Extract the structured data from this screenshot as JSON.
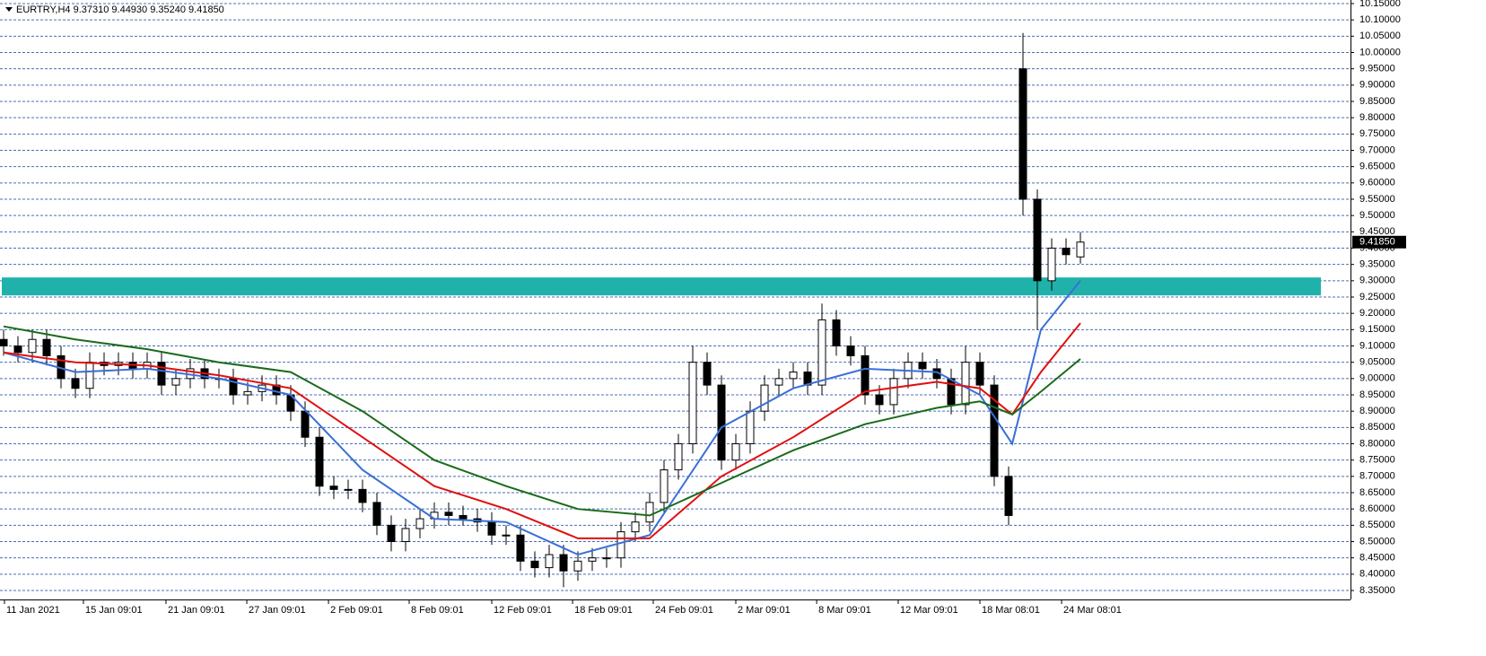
{
  "chart_data": {
    "type": "candlestick",
    "title": "EURTRY,H4  9.37310 9.44930 9.35240 9.41850",
    "x": [
      0,
      1,
      2,
      3,
      4,
      5,
      6,
      7,
      8,
      9,
      10,
      11,
      12,
      13,
      14,
      15,
      16,
      17,
      18,
      19,
      20,
      21,
      22,
      23,
      24,
      25,
      26,
      27,
      28,
      29,
      30,
      31,
      32,
      33,
      34,
      35,
      36,
      37,
      38,
      39,
      40,
      41,
      42,
      43,
      44,
      45,
      46,
      47,
      48,
      49,
      50,
      51,
      52,
      53,
      54,
      55,
      56,
      57,
      58,
      59,
      60,
      61,
      62,
      63,
      64,
      65,
      66,
      67,
      68,
      69,
      70,
      71,
      72,
      73,
      74,
      75
    ],
    "open": [
      9.12,
      9.1,
      9.08,
      9.12,
      9.07,
      9.0,
      8.97,
      9.05,
      9.04,
      9.05,
      9.03,
      9.05,
      8.98,
      9.0,
      9.03,
      9.0,
      9.0,
      8.95,
      8.96,
      8.98,
      8.95,
      8.9,
      8.82,
      8.67,
      8.66,
      8.66,
      8.62,
      8.55,
      8.5,
      8.54,
      8.57,
      8.59,
      8.58,
      8.57,
      8.56,
      8.52,
      8.52,
      8.44,
      8.42,
      8.46,
      8.41,
      8.44,
      8.45,
      8.45,
      8.53,
      8.56,
      8.62,
      8.72,
      8.8,
      9.05,
      8.98,
      8.75,
      8.8,
      8.9,
      8.98,
      9.0,
      9.02,
      8.98,
      9.18,
      9.1,
      9.07,
      8.95,
      8.92,
      9.0,
      9.05,
      9.03,
      9.0,
      8.92,
      9.05,
      8.98,
      8.7,
      9.95,
      9.55,
      9.3,
      9.4,
      9.3731
    ],
    "high": [
      9.15,
      9.13,
      9.15,
      9.15,
      9.1,
      9.03,
      9.08,
      9.08,
      9.08,
      9.08,
      9.08,
      9.08,
      9.03,
      9.06,
      9.06,
      9.03,
      9.03,
      8.99,
      9.01,
      9.01,
      8.98,
      8.93,
      8.85,
      8.7,
      8.69,
      8.69,
      8.65,
      8.58,
      8.57,
      8.6,
      8.62,
      8.62,
      8.61,
      8.6,
      8.59,
      8.55,
      8.55,
      8.47,
      8.49,
      8.49,
      8.47,
      8.48,
      8.48,
      8.56,
      8.59,
      8.65,
      8.75,
      8.83,
      9.1,
      9.08,
      9.01,
      8.83,
      8.93,
      9.01,
      9.03,
      9.05,
      9.05,
      9.23,
      9.21,
      9.13,
      9.1,
      8.98,
      9.03,
      9.08,
      9.08,
      9.06,
      9.03,
      9.1,
      9.08,
      9.01,
      8.73,
      10.06,
      9.58,
      9.43,
      9.43,
      9.4493
    ],
    "low": [
      9.07,
      9.05,
      9.05,
      9.04,
      8.97,
      8.94,
      8.94,
      9.01,
      9.01,
      9.0,
      9.0,
      8.95,
      8.95,
      8.97,
      8.97,
      8.97,
      8.92,
      8.92,
      8.93,
      8.92,
      8.87,
      8.79,
      8.64,
      8.63,
      8.63,
      8.59,
      8.52,
      8.47,
      8.47,
      8.51,
      8.54,
      8.55,
      8.55,
      8.53,
      8.49,
      8.49,
      8.41,
      8.39,
      8.39,
      8.36,
      8.38,
      8.41,
      8.42,
      8.42,
      8.5,
      8.53,
      8.59,
      8.69,
      8.77,
      8.95,
      8.72,
      8.72,
      8.77,
      8.87,
      8.95,
      8.97,
      8.95,
      8.95,
      9.07,
      9.04,
      8.92,
      8.89,
      8.89,
      8.97,
      9.0,
      8.97,
      8.89,
      8.89,
      8.95,
      8.67,
      8.55,
      9.5,
      9.15,
      9.27,
      9.35,
      9.3524
    ],
    "close": [
      9.1,
      9.08,
      9.12,
      9.07,
      9.0,
      8.97,
      9.05,
      9.04,
      9.05,
      9.03,
      9.05,
      8.98,
      9.0,
      9.03,
      9.0,
      9.0,
      8.95,
      8.96,
      8.98,
      8.95,
      8.9,
      8.82,
      8.67,
      8.66,
      8.66,
      8.62,
      8.55,
      8.5,
      8.54,
      8.57,
      8.59,
      8.58,
      8.57,
      8.56,
      8.52,
      8.52,
      8.44,
      8.42,
      8.46,
      8.41,
      8.44,
      8.45,
      8.45,
      8.53,
      8.56,
      8.62,
      8.72,
      8.8,
      9.05,
      8.98,
      8.75,
      8.8,
      8.9,
      8.98,
      9.0,
      9.02,
      8.98,
      9.18,
      9.1,
      9.07,
      8.95,
      8.92,
      9.0,
      9.05,
      9.03,
      9.0,
      8.92,
      9.05,
      8.98,
      8.7,
      8.58,
      9.55,
      9.3,
      9.4,
      9.38,
      9.4185
    ],
    "up_color": "#ffffff",
    "down_color": "#000000",
    "wick_color": "#000000",
    "indicators": [
      {
        "color": "#3a6fd8",
        "x": [
          0,
          5,
          10,
          15,
          20,
          25,
          30,
          35,
          40,
          45,
          50,
          55,
          60,
          65,
          68,
          70.25,
          72.25,
          75
        ],
        "values": [
          9.08,
          9.02,
          9.03,
          9.0,
          8.95,
          8.72,
          8.57,
          8.56,
          8.46,
          8.52,
          8.85,
          8.97,
          9.03,
          9.02,
          8.95,
          8.8,
          9.15,
          9.3
        ]
      },
      {
        "color": "#e01010",
        "x": [
          0,
          5,
          10,
          15,
          20,
          25,
          30,
          35,
          40,
          45,
          50,
          55,
          60,
          65,
          68,
          70.25,
          72.25,
          75
        ],
        "values": [
          9.08,
          9.05,
          9.04,
          9.01,
          8.97,
          8.82,
          8.67,
          8.6,
          8.51,
          8.51,
          8.7,
          8.82,
          8.96,
          8.99,
          8.97,
          8.89,
          9.02,
          9.17
        ]
      },
      {
        "color": "#1a6b1a",
        "x": [
          0,
          5,
          10,
          15,
          20,
          25,
          30,
          35,
          40,
          45,
          50,
          55,
          60,
          65,
          68,
          70.25,
          72.25,
          75
        ],
        "values": [
          9.16,
          9.12,
          9.09,
          9.05,
          9.02,
          8.9,
          8.75,
          8.67,
          8.6,
          8.58,
          8.68,
          8.78,
          8.86,
          8.91,
          8.93,
          8.89,
          8.96,
          9.06
        ]
      }
    ],
    "zone": {
      "color": "#20b2aa",
      "from": 9.255,
      "to": 9.31
    },
    "last_price": {
      "value": 9.4185,
      "label": "9.41850"
    },
    "xlim": [
      -0.25,
      93.8125
    ],
    "ylim": [
      8.35,
      10.15
    ],
    "xticks": [
      {
        "value": 0.06,
        "label": "11 Jan 2021"
      },
      {
        "value": 5.56,
        "label": "15 Jan 09:01"
      },
      {
        "value": 11.31,
        "label": "21 Jan 09:01"
      },
      {
        "value": 16.94,
        "label": "27 Jan 09:01"
      },
      {
        "value": 22.63,
        "label": "2 Feb 09:01"
      },
      {
        "value": 28.25,
        "label": "8 Feb 09:01"
      },
      {
        "value": 34,
        "label": "12 Feb 09:01"
      },
      {
        "value": 39.63,
        "label": "18 Feb 09:01"
      },
      {
        "value": 45.25,
        "label": "24 Feb 09:01"
      },
      {
        "value": 51,
        "label": "2 Mar 09:01"
      },
      {
        "value": 56.63,
        "label": "8 Mar 09:01"
      },
      {
        "value": 62.31,
        "label": "12 Mar 09:01"
      },
      {
        "value": 68,
        "label": "18 Mar 08:01"
      },
      {
        "value": 73.69,
        "label": "24 Mar 08:01"
      }
    ],
    "yticks": [
      {
        "value": 10.15,
        "label": "10.15000"
      },
      {
        "value": 10.1,
        "label": "10.10000"
      },
      {
        "value": 10.05,
        "label": "10.05000"
      },
      {
        "value": 10,
        "label": "10.00000"
      },
      {
        "value": 9.95,
        "label": "9.95000"
      },
      {
        "value": 9.9,
        "label": "9.90000"
      },
      {
        "value": 9.85,
        "label": "9.85000"
      },
      {
        "value": 9.8,
        "label": "9.80000"
      },
      {
        "value": 9.75,
        "label": "9.75000"
      },
      {
        "value": 9.7,
        "label": "9.70000"
      },
      {
        "value": 9.65,
        "label": "9.65000"
      },
      {
        "value": 9.6,
        "label": "9.60000"
      },
      {
        "value": 9.55,
        "label": "9.55000"
      },
      {
        "value": 9.5,
        "label": "9.50000"
      },
      {
        "value": 9.45,
        "label": "9.45000"
      },
      {
        "value": 9.4,
        "label": "9.40000"
      },
      {
        "value": 9.35,
        "label": "9.35000"
      },
      {
        "value": 9.3,
        "label": "9.30000"
      },
      {
        "value": 9.25,
        "label": "9.25000"
      },
      {
        "value": 9.2,
        "label": "9.20000"
      },
      {
        "value": 9.15,
        "label": "9.15000"
      },
      {
        "value": 9.1,
        "label": "9.10000"
      },
      {
        "value": 9.05,
        "label": "9.05000"
      },
      {
        "value": 9,
        "label": "9.00000"
      },
      {
        "value": 8.95,
        "label": "8.95000"
      },
      {
        "value": 8.9,
        "label": "8.90000"
      },
      {
        "value": 8.85,
        "label": "8.85000"
      },
      {
        "value": 8.8,
        "label": "8.80000"
      },
      {
        "value": 8.75,
        "label": "8.75000"
      },
      {
        "value": 8.7,
        "label": "8.70000"
      },
      {
        "value": 8.65,
        "label": "8.65000"
      },
      {
        "value": 8.6,
        "label": "8.60000"
      },
      {
        "value": 8.55,
        "label": "8.55000"
      },
      {
        "value": 8.5,
        "label": "8.50000"
      },
      {
        "value": 8.45,
        "label": "8.45000"
      },
      {
        "value": 8.4,
        "label": "8.40000"
      },
      {
        "value": 8.35,
        "label": "8.35000"
      }
    ],
    "grid": true
  }
}
